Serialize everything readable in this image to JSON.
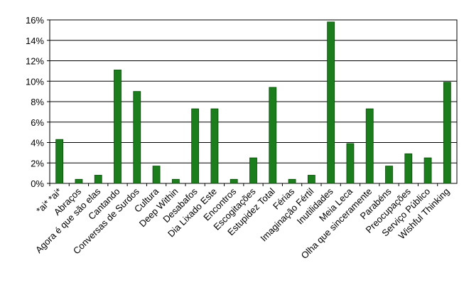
{
  "chart_data": {
    "type": "bar",
    "categories": [
      "*ai* *ai*",
      "Abraços",
      "Agora é que são elas",
      "Cantando",
      "Conversas de Surdos",
      "Cultura",
      "Deep Within",
      "Desabafos",
      "Dia Lixado Este",
      "Encontros",
      "Escogitações",
      "Estupidez Total",
      "Férias",
      "Imaginação Fértil",
      "Inutilidades",
      "Meia Leca",
      "Olha que sinceramente",
      "Parabéns",
      "Preocupações",
      "Serviço Público",
      "Wishful Thinking"
    ],
    "values": [
      4.3,
      0.4,
      0.8,
      11.1,
      9.0,
      1.7,
      0.4,
      7.3,
      7.3,
      0.4,
      2.5,
      9.4,
      0.4,
      0.8,
      15.8,
      3.9,
      7.3,
      1.7,
      2.9,
      2.5,
      9.9
    ],
    "color": "#1b7d1b",
    "ylim": [
      0,
      16
    ],
    "yticks": [
      {
        "value": 0,
        "label": "0%"
      },
      {
        "value": 2,
        "label": "2%"
      },
      {
        "value": 4,
        "label": "4%"
      },
      {
        "value": 6,
        "label": "6%"
      },
      {
        "value": 8,
        "label": "8%"
      },
      {
        "value": 10,
        "label": "10%"
      },
      {
        "value": 12,
        "label": "12%"
      },
      {
        "value": 14,
        "label": "14%"
      },
      {
        "value": 16,
        "label": "16%"
      }
    ],
    "grid": true
  }
}
